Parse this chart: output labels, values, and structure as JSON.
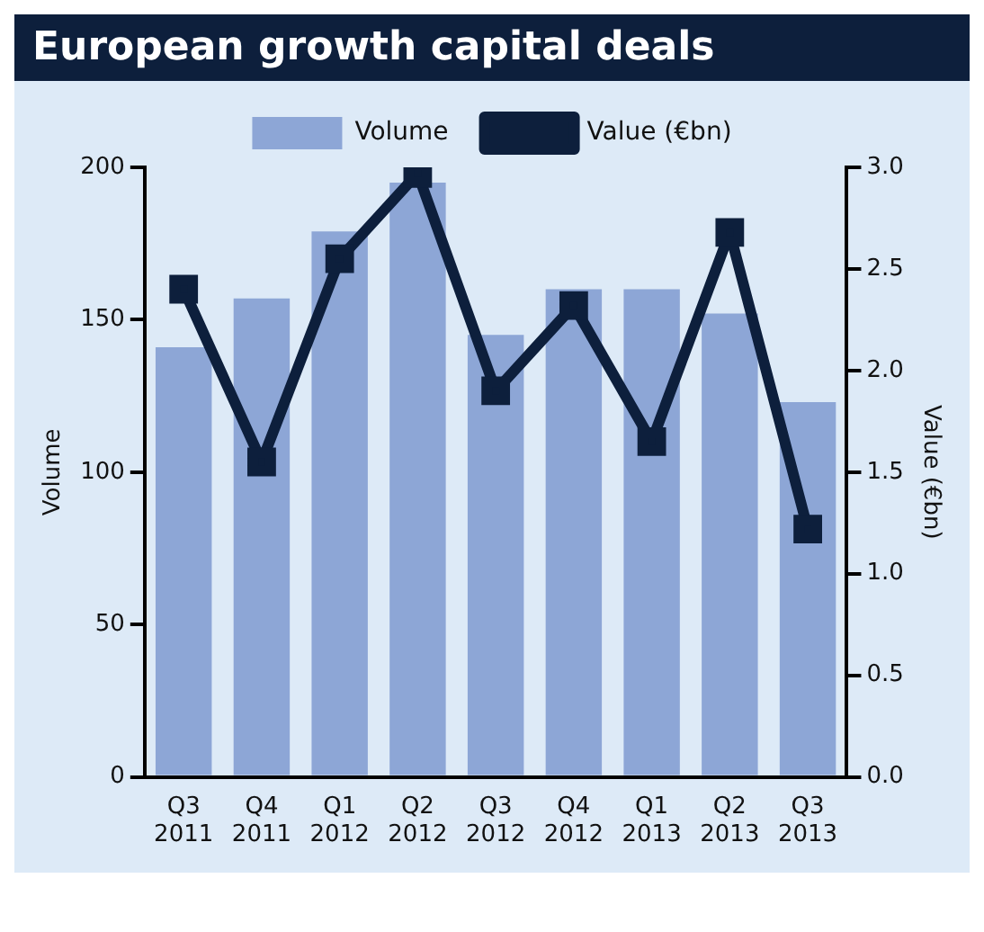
{
  "chart_data": {
    "type": "bar",
    "title": "European growth capital deals",
    "categories": [
      "Q3\n2011",
      "Q4\n2011",
      "Q1\n2012",
      "Q2\n2012",
      "Q3\n2012",
      "Q4\n2012",
      "Q1\n2013",
      "Q2\n2013",
      "Q3\n2013"
    ],
    "series": [
      {
        "name": "Volume",
        "color": "#8da6d6",
        "values": [
          141,
          157,
          179,
          195,
          145,
          160,
          160,
          152,
          123
        ]
      },
      {
        "name": "Value (€bn)",
        "type": "line",
        "axis": "y2",
        "color": "#0d1f3c",
        "values": [
          2.4,
          1.55,
          2.55,
          2.97,
          1.9,
          2.32,
          1.65,
          2.68,
          1.22
        ]
      }
    ],
    "ylabel": "Volume",
    "y2label": "Value (€bn)",
    "ylim": [
      0,
      200
    ],
    "yticks": [
      0,
      50,
      100,
      150,
      200
    ],
    "y2lim": [
      0,
      3
    ],
    "y2ticks": [
      {
        "value": 0,
        "label": "0.0"
      },
      {
        "value": 0.5,
        "label": "0.5"
      },
      {
        "value": 1,
        "label": "1.0"
      },
      {
        "value": 1.5,
        "label": "1.5"
      },
      {
        "value": 2,
        "label": "2.0"
      },
      {
        "value": 2.5,
        "label": "2.5"
      },
      {
        "value": 3,
        "label": "3.0"
      }
    ],
    "legend": "top",
    "grid": false,
    "marker": "square"
  }
}
